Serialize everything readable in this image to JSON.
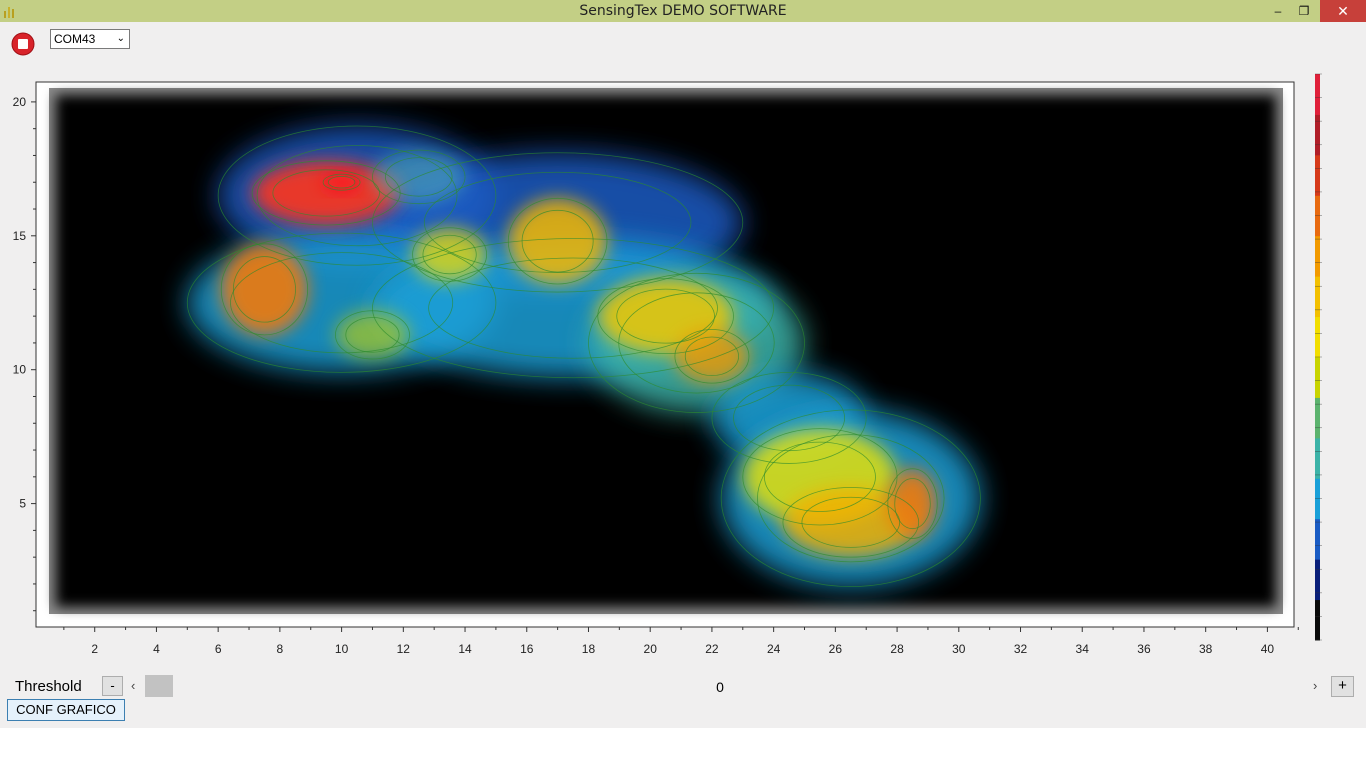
{
  "window": {
    "title": "SensingTex DEMO SOFTWARE",
    "controls": {
      "minimize": "–",
      "maximize": "❐",
      "close": "✕"
    }
  },
  "toolbar": {
    "stop_icon": "stop-record-icon",
    "port": "COM43",
    "port_chevron": "⌄"
  },
  "chart_data": {
    "type": "heatmap",
    "xlim": [
      0.5,
      41
    ],
    "ylim": [
      0.5,
      21
    ],
    "x_ticks": [
      2,
      4,
      6,
      8,
      10,
      12,
      14,
      16,
      18,
      20,
      22,
      24,
      26,
      28,
      30,
      32,
      34,
      36,
      38,
      40
    ],
    "y_ticks": [
      5,
      10,
      15,
      20
    ],
    "x_tick_labels": [
      "2",
      "4",
      "6",
      "8",
      "10",
      "12",
      "14",
      "16",
      "18",
      "20",
      "22",
      "24",
      "26",
      "28",
      "30",
      "32",
      "34",
      "36",
      "38",
      "40"
    ],
    "y_tick_labels": [
      "5",
      "10",
      "15",
      "20"
    ],
    "background": "#000000",
    "colorbar": [
      "#0a0a0a",
      "#0a1f7a",
      "#1a5cc4",
      "#1aa0d8",
      "#3cb3a8",
      "#5cb36e",
      "#c8d400",
      "#f2de00",
      "#f3c000",
      "#f29a00",
      "#e86a10",
      "#d63a1a",
      "#b01e28",
      "#e0203a"
    ],
    "contour_color": "#2e8b2e",
    "blobs": [
      {
        "x": 9.5,
        "y": 16.6,
        "rx": 2.4,
        "ry": 1.2,
        "intensity": 1.0,
        "color": "#e8382a"
      },
      {
        "x": 10.0,
        "y": 17.0,
        "rx": 0.6,
        "ry": 0.3,
        "intensity": 1.0,
        "color": "#ff1020"
      },
      {
        "x": 12.5,
        "y": 17.2,
        "rx": 1.5,
        "ry": 1.0,
        "intensity": 0.5,
        "color": "#5cb8b8"
      },
      {
        "x": 7.5,
        "y": 13.0,
        "rx": 1.4,
        "ry": 1.7,
        "intensity": 0.9,
        "color": "#f07a10"
      },
      {
        "x": 13.5,
        "y": 14.3,
        "rx": 1.2,
        "ry": 1.0,
        "intensity": 0.75,
        "color": "#f2de00"
      },
      {
        "x": 17.0,
        "y": 14.8,
        "rx": 1.6,
        "ry": 1.6,
        "intensity": 0.85,
        "color": "#f5b800"
      },
      {
        "x": 20.5,
        "y": 12.0,
        "rx": 2.2,
        "ry": 1.4,
        "intensity": 0.85,
        "color": "#f2c800"
      },
      {
        "x": 22.0,
        "y": 10.5,
        "rx": 1.2,
        "ry": 1.0,
        "intensity": 0.8,
        "color": "#f29a00"
      },
      {
        "x": 11.0,
        "y": 11.3,
        "rx": 1.2,
        "ry": 0.9,
        "intensity": 0.6,
        "color": "#c8d400"
      },
      {
        "x": 25.5,
        "y": 6.0,
        "rx": 2.5,
        "ry": 1.8,
        "intensity": 0.8,
        "color": "#f2e600"
      },
      {
        "x": 26.5,
        "y": 4.3,
        "rx": 2.2,
        "ry": 1.3,
        "intensity": 0.85,
        "color": "#f2b000"
      },
      {
        "x": 28.5,
        "y": 5.0,
        "rx": 0.8,
        "ry": 1.3,
        "intensity": 0.9,
        "color": "#f07a10"
      }
    ],
    "halos": [
      {
        "x": 10.5,
        "y": 16.5,
        "rx": 4.5,
        "ry": 2.6,
        "color": "#1a5cc4"
      },
      {
        "x": 17.0,
        "y": 15.5,
        "rx": 6.0,
        "ry": 2.6,
        "color": "#1a5cc4"
      },
      {
        "x": 10.0,
        "y": 12.5,
        "rx": 5.0,
        "ry": 2.6,
        "color": "#1aa0d8"
      },
      {
        "x": 17.5,
        "y": 12.3,
        "rx": 6.5,
        "ry": 2.6,
        "color": "#1aa0d8"
      },
      {
        "x": 21.5,
        "y": 11.0,
        "rx": 3.5,
        "ry": 2.6,
        "color": "#3cb3a8"
      },
      {
        "x": 24.5,
        "y": 8.2,
        "rx": 2.5,
        "ry": 1.7,
        "color": "#1aa0d8"
      },
      {
        "x": 26.5,
        "y": 5.2,
        "rx": 4.2,
        "ry": 3.3,
        "color": "#1aa0d8"
      }
    ]
  },
  "threshold": {
    "label": "Threshold",
    "value": "0",
    "minus_label": "-",
    "plus_label": "+",
    "left_arrow": "‹",
    "right_arrow": "›",
    "fraction": 0.0
  },
  "conf_button": {
    "label": "CONF GRAFICO"
  }
}
